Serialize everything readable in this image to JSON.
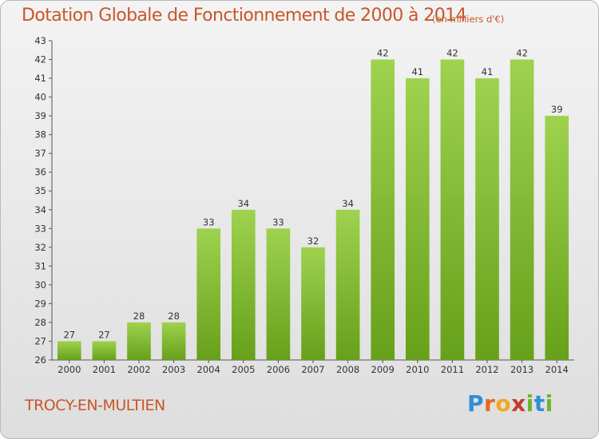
{
  "header": {
    "title": "Dotation Globale de Fonctionnement de 2000 à 2014",
    "unit": "(en milliers d'€)"
  },
  "footer": {
    "town": "TROCY-EN-MULTIEN",
    "brand_letters": [
      "P",
      "r",
      "o",
      "x",
      "i",
      "t",
      "i"
    ],
    "brand_colors": [
      "#2e8fd8",
      "#e36a1f",
      "#f2a81d",
      "#c53b2d",
      "#6bb52e",
      "#2e8fd8",
      "#6bb52e"
    ]
  },
  "chart_data": {
    "type": "bar",
    "categories": [
      "2000",
      "2001",
      "2002",
      "2003",
      "2004",
      "2005",
      "2006",
      "2007",
      "2008",
      "2009",
      "2010",
      "2011",
      "2012",
      "2013",
      "2014"
    ],
    "values": [
      27,
      27,
      28,
      28,
      33,
      34,
      33,
      32,
      34,
      42,
      41,
      42,
      41,
      42,
      39
    ],
    "ylim": [
      26,
      43
    ],
    "yticks": [
      26,
      27,
      28,
      29,
      30,
      31,
      32,
      33,
      34,
      35,
      36,
      37,
      38,
      39,
      40,
      41,
      42,
      43
    ],
    "grid": false,
    "bar_color_top": "#9ed24f",
    "bar_color_bottom": "#67a01a"
  }
}
